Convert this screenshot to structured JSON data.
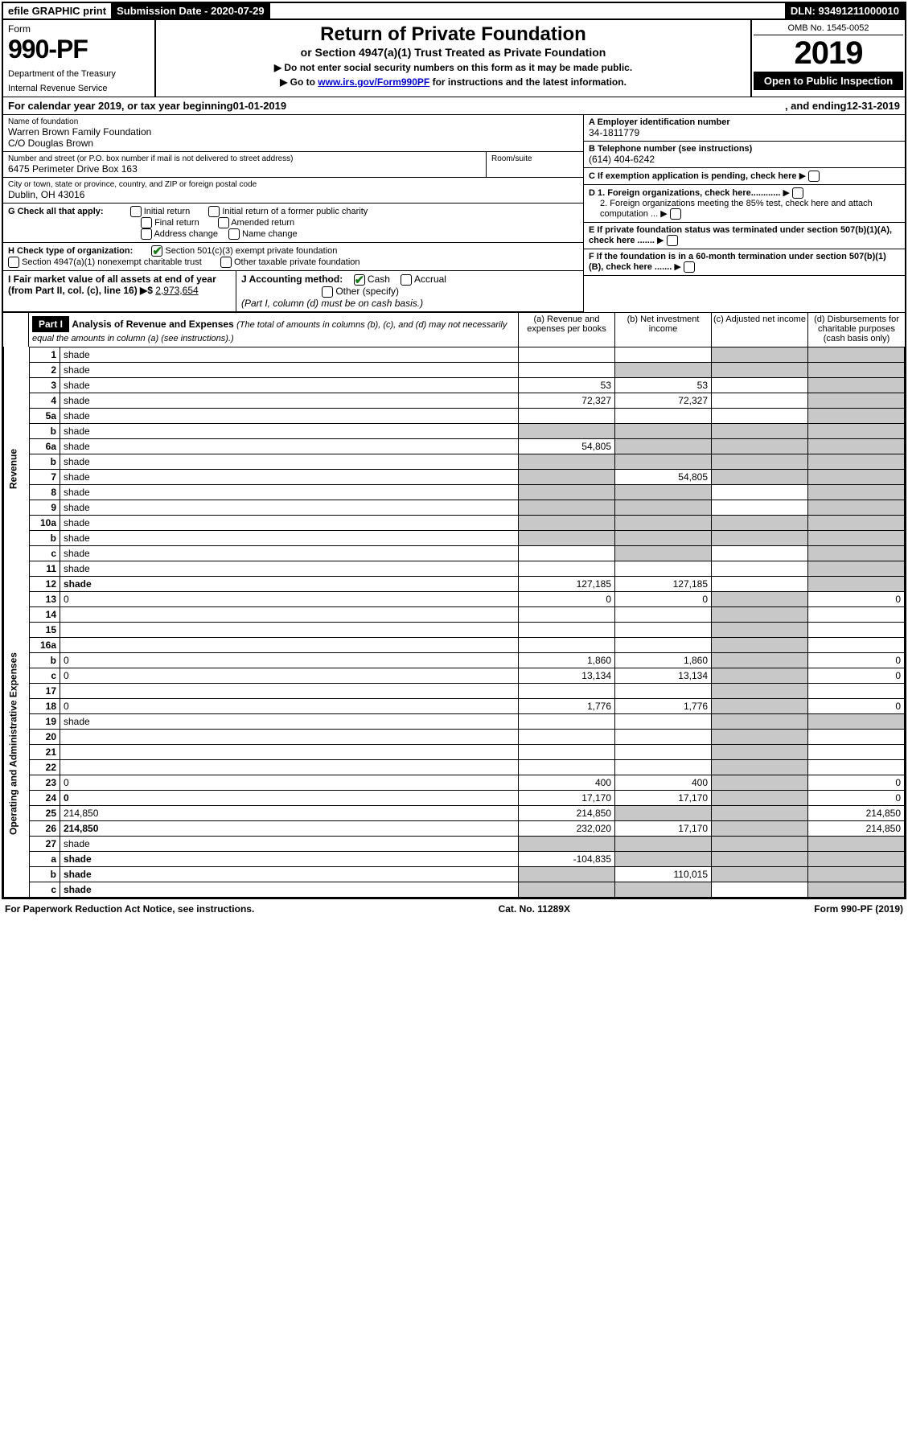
{
  "topbar": {
    "efile": "efile GRAPHIC print",
    "sub_label": "Submission Date - 2020-07-29",
    "dln": "DLN: 93491211000010"
  },
  "form": {
    "form_word": "Form",
    "num": "990-PF",
    "dept": "Department of the Treasury",
    "irs": "Internal Revenue Service",
    "title": "Return of Private Foundation",
    "subtitle": "or Section 4947(a)(1) Trust Treated as Private Foundation",
    "note1": "▶ Do not enter social security numbers on this form as it may be made public.",
    "note2_pre": "▶ Go to ",
    "note2_link": "www.irs.gov/Form990PF",
    "note2_post": " for instructions and the latest information.",
    "omb": "OMB No. 1545-0052",
    "year": "2019",
    "open": "Open to Public Inspection"
  },
  "cal": {
    "pre": "For calendar year 2019, or tax year beginning ",
    "begin": "01-01-2019",
    "mid": " , and ending ",
    "end": "12-31-2019"
  },
  "id": {
    "name_lbl": "Name of foundation",
    "name1": "Warren Brown Family Foundation",
    "name2": "C/O Douglas Brown",
    "addr_lbl": "Number and street (or P.O. box number if mail is not delivered to street address)",
    "addr": "6475 Perimeter Drive Box 163",
    "room_lbl": "Room/suite",
    "city_lbl": "City or town, state or province, country, and ZIP or foreign postal code",
    "city": "Dublin, OH  43016",
    "ein_lbl": "A Employer identification number",
    "ein": "34-1811779",
    "tel_lbl": "B Telephone number (see instructions)",
    "tel": "(614) 404-6242",
    "c_lbl": "C If exemption application is pending, check here",
    "d1": "D 1. Foreign organizations, check here............",
    "d2": "2. Foreign organizations meeting the 85% test, check here and attach computation ...",
    "e_lbl": "E If private foundation status was terminated under section 507(b)(1)(A), check here .......",
    "f_lbl": "F If the foundation is in a 60-month termination under section 507(b)(1)(B), check here ......."
  },
  "g": {
    "lbl": "G Check all that apply:",
    "opts": [
      "Initial return",
      "Initial return of a former public charity",
      "Final return",
      "Amended return",
      "Address change",
      "Name change"
    ]
  },
  "h": {
    "lbl": "H Check type of organization:",
    "o1": "Section 501(c)(3) exempt private foundation",
    "o2": "Section 4947(a)(1) nonexempt charitable trust",
    "o3": "Other taxable private foundation"
  },
  "i": {
    "lbl": "I Fair market value of all assets at end of year (from Part II, col. (c), line 16) ▶$",
    "val": "2,973,654"
  },
  "j": {
    "lbl": "J Accounting method:",
    "cash": "Cash",
    "accrual": "Accrual",
    "other": "Other (specify)",
    "note": "(Part I, column (d) must be on cash basis.)"
  },
  "part1": {
    "name": "Part I",
    "title": "Analysis of Revenue and Expenses",
    "sub": " (The total of amounts in columns (b), (c), and (d) may not necessarily equal the amounts in column (a) (see instructions).)",
    "cols": {
      "a": "(a)   Revenue and expenses per books",
      "b": "(b)  Net investment income",
      "c": "(c)  Adjusted net income",
      "d": "(d)  Disbursements for charitable purposes (cash basis only)"
    }
  },
  "sideRev": "Revenue",
  "sideExp": "Operating and Administrative Expenses",
  "rows": [
    {
      "n": "1",
      "d": "shade",
      "a": "",
      "b": "",
      "c": "shade"
    },
    {
      "n": "2",
      "d": "shade",
      "a": "",
      "b": "shade",
      "c": "shade",
      "nob": true
    },
    {
      "n": "3",
      "d": "shade",
      "a": "53",
      "b": "53",
      "c": ""
    },
    {
      "n": "4",
      "d": "shade",
      "a": "72,327",
      "b": "72,327",
      "c": ""
    },
    {
      "n": "5a",
      "d": "shade",
      "a": "",
      "b": "",
      "c": ""
    },
    {
      "n": "b",
      "d": "shade",
      "a": "shade",
      "b": "shade",
      "c": "shade"
    },
    {
      "n": "6a",
      "d": "shade",
      "a": "54,805",
      "b": "shade",
      "c": "shade"
    },
    {
      "n": "b",
      "d": "shade",
      "a": "shade",
      "b": "shade",
      "c": "shade"
    },
    {
      "n": "7",
      "d": "shade",
      "a": "shade",
      "b": "54,805",
      "c": "shade"
    },
    {
      "n": "8",
      "d": "shade",
      "a": "shade",
      "b": "shade",
      "c": ""
    },
    {
      "n": "9",
      "d": "shade",
      "a": "shade",
      "b": "shade",
      "c": ""
    },
    {
      "n": "10a",
      "d": "shade",
      "a": "shade",
      "b": "shade",
      "c": "shade"
    },
    {
      "n": "b",
      "d": "shade",
      "a": "shade",
      "b": "shade",
      "c": "shade"
    },
    {
      "n": "c",
      "d": "shade",
      "a": "",
      "b": "shade",
      "c": ""
    },
    {
      "n": "11",
      "d": "shade",
      "a": "",
      "b": "",
      "c": ""
    },
    {
      "n": "12",
      "d": "shade",
      "a": "127,185",
      "b": "127,185",
      "c": "",
      "bold": true
    },
    {
      "n": "13",
      "d": "0",
      "a": "0",
      "b": "0",
      "c": "shade"
    },
    {
      "n": "14",
      "d": "",
      "a": "",
      "b": "",
      "c": "shade"
    },
    {
      "n": "15",
      "d": "",
      "a": "",
      "b": "",
      "c": "shade"
    },
    {
      "n": "16a",
      "d": "",
      "a": "",
      "b": "",
      "c": "shade"
    },
    {
      "n": "b",
      "d": "0",
      "a": "1,860",
      "b": "1,860",
      "c": "shade"
    },
    {
      "n": "c",
      "d": "0",
      "a": "13,134",
      "b": "13,134",
      "c": "shade"
    },
    {
      "n": "17",
      "d": "",
      "a": "",
      "b": "",
      "c": "shade"
    },
    {
      "n": "18",
      "d": "0",
      "a": "1,776",
      "b": "1,776",
      "c": "shade"
    },
    {
      "n": "19",
      "d": "shade",
      "a": "",
      "b": "",
      "c": "shade"
    },
    {
      "n": "20",
      "d": "",
      "a": "",
      "b": "",
      "c": "shade"
    },
    {
      "n": "21",
      "d": "",
      "a": "",
      "b": "",
      "c": "shade"
    },
    {
      "n": "22",
      "d": "",
      "a": "",
      "b": "",
      "c": "shade"
    },
    {
      "n": "23",
      "d": "0",
      "a": "400",
      "b": "400",
      "c": "shade"
    },
    {
      "n": "24",
      "d": "0",
      "a": "17,170",
      "b": "17,170",
      "c": "shade",
      "bold": true
    },
    {
      "n": "25",
      "d": "214,850",
      "a": "214,850",
      "b": "shade",
      "c": "shade"
    },
    {
      "n": "26",
      "d": "214,850",
      "a": "232,020",
      "b": "17,170",
      "c": "shade",
      "bold": true
    },
    {
      "n": "27",
      "d": "shade",
      "a": "shade",
      "b": "shade",
      "c": "shade"
    },
    {
      "n": "a",
      "d": "shade",
      "a": "-104,835",
      "b": "shade",
      "c": "shade",
      "bold": true
    },
    {
      "n": "b",
      "d": "shade",
      "a": "shade",
      "b": "110,015",
      "c": "shade",
      "bold": true
    },
    {
      "n": "c",
      "d": "shade",
      "a": "shade",
      "b": "shade",
      "c": "",
      "bold": true
    }
  ],
  "footer": {
    "left": "For Paperwork Reduction Act Notice, see instructions.",
    "mid": "Cat. No. 11289X",
    "right": "Form 990-PF (2019)"
  }
}
